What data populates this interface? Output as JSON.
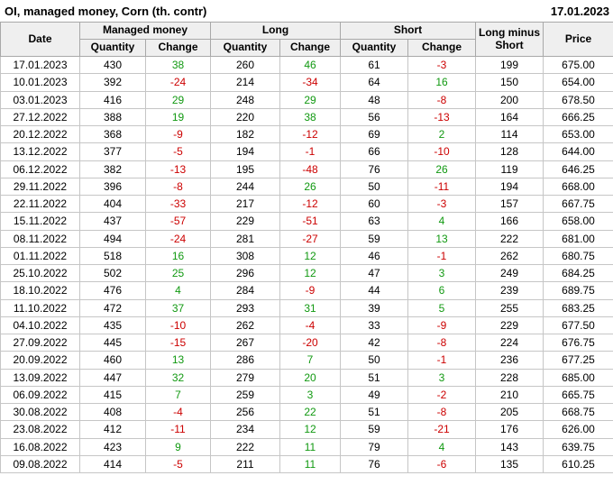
{
  "header": {
    "title": "OI, managed money, Corn (th. contr)",
    "report_date": "17.01.2023"
  },
  "colors": {
    "positive": "#119911",
    "negative": "#cc0000",
    "header_bg": "#efefef",
    "grid": "#c6c6c6"
  },
  "chart_data": {
    "type": "table",
    "title": "OI, managed money, Corn (th. contr)",
    "headers": {
      "date": "Date",
      "managed_money": "Managed money",
      "long": "Long",
      "short": "Short",
      "quantity": "Quantity",
      "change": "Change",
      "long_minus_short": "Long minus Short",
      "price": "Price"
    },
    "column_keys": [
      "date",
      "mm_quantity",
      "mm_change",
      "long_quantity",
      "long_change",
      "short_quantity",
      "short_change",
      "long_minus_short",
      "price"
    ],
    "change_column_indexes": [
      2,
      4,
      6
    ],
    "rows": [
      [
        "17.01.2023",
        430,
        38,
        260,
        46,
        61,
        -3,
        199,
        "675.00"
      ],
      [
        "10.01.2023",
        392,
        -24,
        214,
        -34,
        64,
        16,
        150,
        "654.00"
      ],
      [
        "03.01.2023",
        416,
        29,
        248,
        29,
        48,
        -8,
        200,
        "678.50"
      ],
      [
        "27.12.2022",
        388,
        19,
        220,
        38,
        56,
        -13,
        164,
        "666.25"
      ],
      [
        "20.12.2022",
        368,
        -9,
        182,
        -12,
        69,
        2,
        114,
        "653.00"
      ],
      [
        "13.12.2022",
        377,
        -5,
        194,
        -1,
        66,
        -10,
        128,
        "644.00"
      ],
      [
        "06.12.2022",
        382,
        -13,
        195,
        -48,
        76,
        26,
        119,
        "646.25"
      ],
      [
        "29.11.2022",
        396,
        -8,
        244,
        26,
        50,
        -11,
        194,
        "668.00"
      ],
      [
        "22.11.2022",
        404,
        -33,
        217,
        -12,
        60,
        -3,
        157,
        "667.75"
      ],
      [
        "15.11.2022",
        437,
        -57,
        229,
        -51,
        63,
        4,
        166,
        "658.00"
      ],
      [
        "08.11.2022",
        494,
        -24,
        281,
        -27,
        59,
        13,
        222,
        "681.00"
      ],
      [
        "01.11.2022",
        518,
        16,
        308,
        12,
        46,
        -1,
        262,
        "680.75"
      ],
      [
        "25.10.2022",
        502,
        25,
        296,
        12,
        47,
        3,
        249,
        "684.25"
      ],
      [
        "18.10.2022",
        476,
        4,
        284,
        -9,
        44,
        6,
        239,
        "689.75"
      ],
      [
        "11.10.2022",
        472,
        37,
        293,
        31,
        39,
        5,
        255,
        "683.25"
      ],
      [
        "04.10.2022",
        435,
        -10,
        262,
        -4,
        33,
        -9,
        229,
        "677.50"
      ],
      [
        "27.09.2022",
        445,
        -15,
        267,
        -20,
        42,
        -8,
        224,
        "676.75"
      ],
      [
        "20.09.2022",
        460,
        13,
        286,
        7,
        50,
        -1,
        236,
        "677.25"
      ],
      [
        "13.09.2022",
        447,
        32,
        279,
        20,
        51,
        3,
        228,
        "685.00"
      ],
      [
        "06.09.2022",
        415,
        7,
        259,
        3,
        49,
        -2,
        210,
        "665.75"
      ],
      [
        "30.08.2022",
        408,
        -4,
        256,
        22,
        51,
        -8,
        205,
        "668.75"
      ],
      [
        "23.08.2022",
        412,
        -11,
        234,
        12,
        59,
        -21,
        176,
        "626.00"
      ],
      [
        "16.08.2022",
        423,
        9,
        222,
        11,
        79,
        4,
        143,
        "639.75"
      ],
      [
        "09.08.2022",
        414,
        -5,
        211,
        11,
        76,
        -6,
        135,
        "610.25"
      ]
    ]
  }
}
